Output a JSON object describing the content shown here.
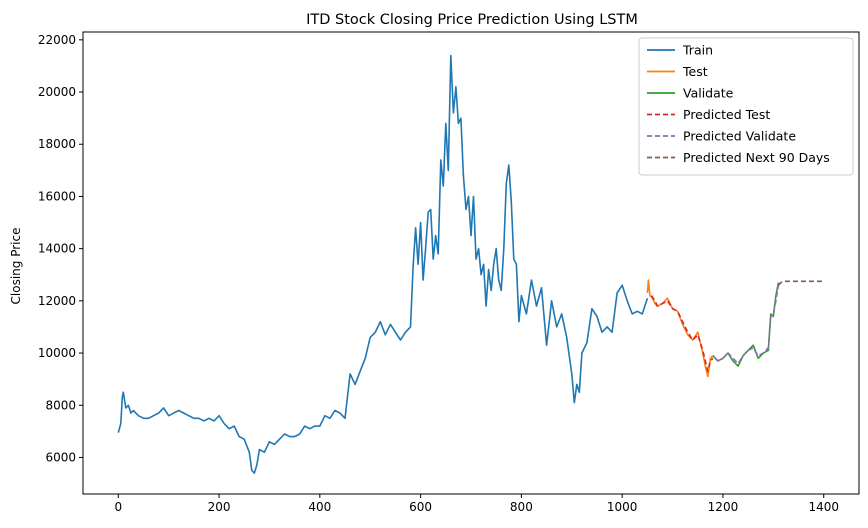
{
  "chart_data": {
    "type": "line",
    "title": "ITD Stock Closing Price Prediction Using LSTM",
    "xlabel": "",
    "ylabel": "Closing Price",
    "xlim": [
      -70,
      1470
    ],
    "ylim": [
      4600,
      22300
    ],
    "xticks": [
      0,
      200,
      400,
      600,
      800,
      1000,
      1200,
      1400
    ],
    "yticks": [
      6000,
      8000,
      10000,
      12000,
      14000,
      16000,
      18000,
      20000,
      22000
    ],
    "grid": false,
    "legend_position": "top-right",
    "series": [
      {
        "name": "Train",
        "color": "#1f77b4",
        "dash": "solid",
        "x": [
          0,
          5,
          8,
          10,
          15,
          20,
          25,
          30,
          40,
          50,
          60,
          70,
          80,
          90,
          100,
          110,
          120,
          130,
          140,
          150,
          160,
          170,
          180,
          190,
          200,
          210,
          220,
          230,
          240,
          250,
          260,
          265,
          270,
          275,
          280,
          290,
          300,
          310,
          320,
          330,
          340,
          350,
          360,
          370,
          380,
          390,
          400,
          410,
          420,
          430,
          440,
          450,
          460,
          470,
          480,
          490,
          500,
          510,
          520,
          530,
          540,
          550,
          560,
          570,
          580,
          585,
          590,
          595,
          600,
          605,
          610,
          615,
          620,
          625,
          630,
          635,
          640,
          645,
          650,
          655,
          660,
          665,
          670,
          675,
          680,
          685,
          690,
          695,
          700,
          705,
          710,
          715,
          720,
          725,
          730,
          735,
          740,
          745,
          750,
          755,
          760,
          765,
          770,
          775,
          780,
          785,
          790,
          795,
          800,
          810,
          820,
          830,
          840,
          850,
          860,
          870,
          880,
          890,
          900,
          905,
          910,
          915,
          920,
          930,
          940,
          950,
          960,
          970,
          980,
          990,
          1000,
          1010,
          1020,
          1030,
          1040,
          1050
        ],
        "y": [
          6950,
          7300,
          8300,
          8500,
          7900,
          8000,
          7700,
          7800,
          7600,
          7500,
          7500,
          7600,
          7700,
          7900,
          7600,
          7700,
          7800,
          7700,
          7600,
          7500,
          7500,
          7400,
          7500,
          7400,
          7600,
          7300,
          7100,
          7200,
          6800,
          6700,
          6200,
          5500,
          5400,
          5700,
          6300,
          6200,
          6600,
          6500,
          6700,
          6900,
          6800,
          6800,
          6900,
          7200,
          7100,
          7200,
          7200,
          7600,
          7500,
          7800,
          7700,
          7500,
          9200,
          8800,
          9300,
          9800,
          10600,
          10800,
          11200,
          10700,
          11100,
          10800,
          10500,
          10800,
          11000,
          13300,
          14800,
          13400,
          15000,
          12800,
          14000,
          15400,
          15500,
          13600,
          14500,
          13800,
          17400,
          16400,
          18800,
          17000,
          21400,
          19200,
          20200,
          18800,
          19000,
          16800,
          15500,
          16000,
          14500,
          16000,
          13600,
          14000,
          13000,
          13400,
          11800,
          13200,
          12400,
          13400,
          14000,
          12800,
          12400,
          14000,
          16500,
          17200,
          15800,
          13600,
          13400,
          11200,
          12200,
          11500,
          12800,
          11800,
          12500,
          10300,
          12000,
          11000,
          11500,
          10600,
          9200,
          8100,
          8800,
          8500,
          10000,
          10400,
          11700,
          11400,
          10800,
          11000,
          10800,
          12300,
          12600,
          12000,
          11500,
          11600,
          11500,
          12100
        ]
      },
      {
        "name": "Test",
        "color": "#ff7f0e",
        "dash": "solid",
        "x": [
          1050,
          1052,
          1055,
          1060,
          1065,
          1070,
          1080,
          1090,
          1100,
          1110,
          1120,
          1130,
          1140,
          1150,
          1160,
          1165,
          1170,
          1175,
          1180
        ],
        "y": [
          12300,
          12800,
          12200,
          12100,
          11900,
          11800,
          11900,
          12100,
          11700,
          11600,
          11100,
          10700,
          10500,
          10800,
          10000,
          9500,
          9100,
          9800,
          9900
        ]
      },
      {
        "name": "Validate",
        "color": "#2ca02c",
        "dash": "solid",
        "x": [
          1180,
          1190,
          1200,
          1210,
          1220,
          1230,
          1240,
          1250,
          1260,
          1270,
          1280,
          1290,
          1295,
          1300,
          1305,
          1310
        ],
        "y": [
          9900,
          9700,
          9800,
          10000,
          9700,
          9500,
          9900,
          10100,
          10300,
          9800,
          10000,
          10100,
          11500,
          11400,
          12200,
          12700
        ]
      },
      {
        "name": "Predicted Test",
        "color": "#d62728",
        "dash": "dashed",
        "x": [
          1058,
          1065,
          1070,
          1080,
          1090,
          1100,
          1110,
          1120,
          1130,
          1140,
          1150,
          1160,
          1165,
          1170,
          1175,
          1180
        ],
        "y": [
          12200,
          12000,
          11800,
          11900,
          12000,
          11700,
          11600,
          11200,
          10800,
          10500,
          10700,
          10100,
          9700,
          9300,
          9700,
          9800
        ]
      },
      {
        "name": "Predicted Validate",
        "color": "#9467bd",
        "dash": "dashed",
        "x": [
          1185,
          1190,
          1200,
          1210,
          1220,
          1230,
          1240,
          1250,
          1260,
          1270,
          1280,
          1290,
          1295,
          1300,
          1305,
          1310
        ],
        "y": [
          9800,
          9700,
          9800,
          10000,
          9800,
          9600,
          9900,
          10100,
          10200,
          9900,
          10000,
          10200,
          11400,
          11500,
          12000,
          12600
        ]
      },
      {
        "name": "Predicted Next 90 Days",
        "color": "#8c564b",
        "dash": "dashed",
        "x": [
          1310,
          1315,
          1320,
          1350,
          1380,
          1400
        ],
        "y": [
          12600,
          12700,
          12750,
          12750,
          12750,
          12750
        ]
      }
    ]
  }
}
